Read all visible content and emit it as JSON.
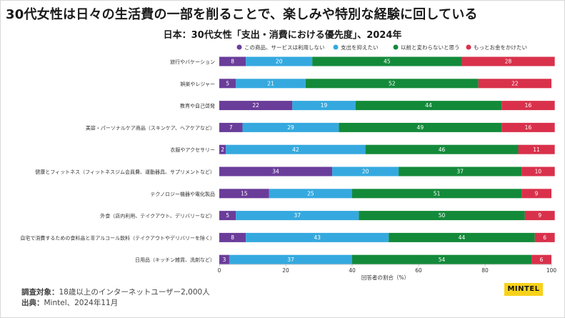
{
  "headline": "30代女性は日々の生活費の一部を削ることで、楽しみや特別な経験に回している",
  "chart_data": {
    "type": "bar",
    "stacked": true,
    "orientation": "horizontal",
    "title": "日本：30代女性「支出・消費における優先度」、2024年",
    "xlabel": "回答者の割合（%）",
    "ylabel": "",
    "xlim": [
      0,
      100
    ],
    "xticks": [
      0,
      20,
      40,
      60,
      80,
      100
    ],
    "grid": false,
    "legend_position": "top",
    "categories": [
      "旅行やバケーション",
      "娯楽やレジャー",
      "教育や自己啓発",
      "美容・パーソナルケア商品（スキンケア、ヘアケアなど）",
      "衣服やアクセサリー",
      "健康とフィットネス（フィットネスジム会員費、運動器具、サプリメントなど）",
      "テクノロジー機器や電化製品",
      "外食（店内利用、テイクアウト、デリバリーなど）",
      "自宅で消費するための食料品と非アルコール飲料（テイクアウトやデリバリーを除く）",
      "日用品（キッチン雑貨、洗剤など）"
    ],
    "series": [
      {
        "name": "この商品、サービスは利用しない",
        "color": "#6a3d9a",
        "values": [
          8,
          5,
          22,
          7,
          2,
          34,
          15,
          5,
          8,
          3
        ]
      },
      {
        "name": "支出を抑えたい",
        "color": "#35a9df",
        "values": [
          20,
          21,
          19,
          29,
          42,
          20,
          25,
          37,
          43,
          37
        ]
      },
      {
        "name": "以前と変わらないと思う",
        "color": "#138a3a",
        "values": [
          45,
          52,
          44,
          49,
          46,
          37,
          51,
          50,
          44,
          54
        ]
      },
      {
        "name": "もっとお金をかけたい",
        "color": "#d9314b",
        "values": [
          28,
          22,
          16,
          16,
          11,
          10,
          9,
          9,
          6,
          6
        ]
      }
    ]
  },
  "footer": {
    "sample_label": "調査対象：",
    "sample_text": "18歳以上のインターネットユーザー2,000人",
    "source_label": "出典：",
    "source_text": "Mintel、2024年11月"
  },
  "logo": {
    "text": "MINTEL",
    "icon": "mintel-logo"
  }
}
